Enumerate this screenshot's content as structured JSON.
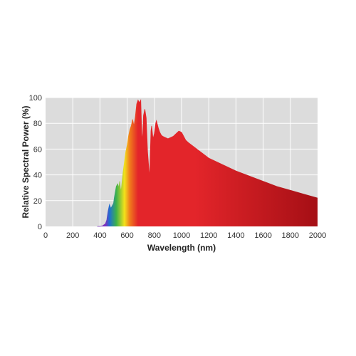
{
  "chart_data": {
    "type": "area",
    "title": "",
    "xlabel": "Wavelength (nm)",
    "ylabel": "Relative Spectral Power (%)",
    "xlim": [
      0,
      2000
    ],
    "ylim": [
      0,
      100
    ],
    "xticks": [
      0,
      200,
      400,
      600,
      800,
      1000,
      1200,
      1400,
      1600,
      1800,
      2000
    ],
    "yticks": [
      0,
      20,
      40,
      60,
      80,
      100
    ],
    "grid": true,
    "legend": "none",
    "colors": {
      "plot_background": "#dcdcdc",
      "grid": "#ffffff",
      "fill_violet": "#7b2fbe",
      "fill_blue": "#1f6fd1",
      "fill_green": "#3db14a",
      "fill_yellow": "#f2e21b",
      "fill_orange": "#f07a1c",
      "fill_red": "#e3252a",
      "fill_dark_red": "#a50f15"
    },
    "series": [
      {
        "x": [
          380,
          400,
          420,
          440,
          450,
          460,
          470,
          480,
          490,
          500,
          505,
          510,
          520,
          530,
          540,
          545,
          550,
          555,
          560,
          570,
          580,
          590,
          600,
          610,
          620,
          630,
          640,
          650,
          660,
          670,
          680,
          690,
          700,
          705,
          710,
          715,
          720,
          730,
          740,
          750,
          760,
          765,
          770,
          775,
          780,
          790,
          800,
          810,
          815,
          820,
          830,
          840,
          850,
          860,
          880,
          900,
          920,
          940,
          960,
          980,
          1000,
          1010,
          1020,
          1030,
          1050,
          1100,
          1150,
          1200,
          1300,
          1400,
          1500,
          1600,
          1700,
          1800,
          1900,
          2000
        ],
        "y": [
          0,
          0,
          0.5,
          2,
          5,
          12,
          17,
          14,
          16,
          18,
          22,
          25,
          31,
          33,
          30,
          35,
          30,
          27,
          32,
          42,
          50,
          58,
          63,
          70,
          75,
          78,
          83,
          78,
          85,
          95,
          98,
          96,
          98,
          80,
          66,
          72,
          86,
          91,
          84,
          58,
          44,
          38,
          56,
          74,
          78,
          68,
          72,
          80,
          82,
          80,
          76,
          73,
          71,
          70,
          69,
          68,
          69,
          70,
          72,
          74,
          73,
          71,
          69,
          67,
          65,
          61,
          57,
          53,
          48,
          43,
          39,
          35,
          31,
          28,
          25,
          22
        ]
      }
    ]
  }
}
